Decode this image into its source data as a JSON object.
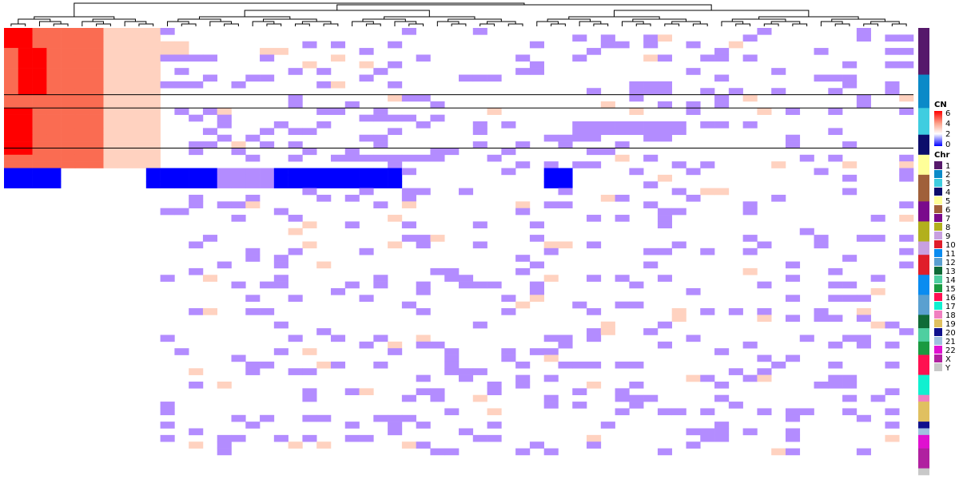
{
  "chart_data": {
    "type": "heatmap",
    "cn_legend": {
      "title": "CN",
      "ticks": [
        "6",
        "4",
        "2",
        "0"
      ],
      "colors": {
        "0": "#0000ff",
        "1": "#b38cff",
        "2": "#ffffff",
        "3": "#ffd2c0",
        "4": "#fca28a",
        "5": "#fa6c52",
        "6": "#ff0000"
      }
    },
    "chr_legend": {
      "title": "Chr",
      "entries": [
        {
          "label": "1",
          "color": "#56196b"
        },
        {
          "label": "2",
          "color": "#0b8ac8"
        },
        {
          "label": "3",
          "color": "#3fcde0"
        },
        {
          "label": "4",
          "color": "#0c0d6b"
        },
        {
          "label": "5",
          "color": "#ffff99"
        },
        {
          "label": "6",
          "color": "#a0603a"
        },
        {
          "label": "7",
          "color": "#7a0a8c"
        },
        {
          "label": "8",
          "color": "#b2b01d"
        },
        {
          "label": "9",
          "color": "#c8a0e0"
        },
        {
          "label": "10",
          "color": "#e01e2a"
        },
        {
          "label": "11",
          "color": "#0a8cf0"
        },
        {
          "label": "12",
          "color": "#5aa0d0"
        },
        {
          "label": "13",
          "color": "#0f6b37"
        },
        {
          "label": "14",
          "color": "#4ecfa0"
        },
        {
          "label": "15",
          "color": "#1a9a40"
        },
        {
          "label": "16",
          "color": "#ff1050"
        },
        {
          "label": "17",
          "color": "#10f0d0"
        },
        {
          "label": "18",
          "color": "#f080c0"
        },
        {
          "label": "19",
          "color": "#e0c060"
        },
        {
          "label": "20",
          "color": "#10108c"
        },
        {
          "label": "21",
          "color": "#a0c0e0"
        },
        {
          "label": "22",
          "color": "#e010d0"
        },
        {
          "label": "X",
          "color": "#b020a0"
        },
        {
          "label": "Y",
          "color": "#c8c8c8"
        }
      ]
    },
    "chr_bands": [
      {
        "chr": "1",
        "rows": 7
      },
      {
        "chr": "2",
        "rows": 5
      },
      {
        "chr": "3",
        "rows": 4
      },
      {
        "chr": "4",
        "rows": 3
      },
      {
        "chr": "5",
        "rows": 3
      },
      {
        "chr": "6",
        "rows": 4
      },
      {
        "chr": "7",
        "rows": 3
      },
      {
        "chr": "8",
        "rows": 3
      },
      {
        "chr": "9",
        "rows": 2
      },
      {
        "chr": "10",
        "rows": 3
      },
      {
        "chr": "11",
        "rows": 3
      },
      {
        "chr": "12",
        "rows": 3
      },
      {
        "chr": "13",
        "rows": 2
      },
      {
        "chr": "14",
        "rows": 2
      },
      {
        "chr": "15",
        "rows": 2
      },
      {
        "chr": "16",
        "rows": 3
      },
      {
        "chr": "17",
        "rows": 3
      },
      {
        "chr": "18",
        "rows": 1
      },
      {
        "chr": "19",
        "rows": 3
      },
      {
        "chr": "20",
        "rows": 1
      },
      {
        "chr": "21",
        "rows": 1
      },
      {
        "chr": "22",
        "rows": 2
      },
      {
        "chr": "X",
        "rows": 3
      },
      {
        "chr": "Y",
        "rows": 1
      }
    ],
    "cn_matrix_regions": [
      {
        "rows": [
          0,
          21
        ],
        "cols": [
          0,
          7
        ],
        "cn": 5
      },
      {
        "rows": [
          0,
          21
        ],
        "cols": [
          7,
          11
        ],
        "cn": 3
      },
      {
        "rows": [
          0,
          3
        ],
        "cols": [
          0,
          2
        ],
        "cn": 6
      },
      {
        "rows": [
          3,
          10
        ],
        "cols": [
          1,
          3
        ],
        "cn": 6
      },
      {
        "rows": [
          12,
          19
        ],
        "cols": [
          0,
          2
        ],
        "cn": 6
      },
      {
        "rows": [
          21,
          24
        ],
        "cols": [
          0,
          4
        ],
        "cn": 0
      },
      {
        "rows": [
          21,
          24
        ],
        "cols": [
          10,
          15
        ],
        "cn": 0
      },
      {
        "rows": [
          21,
          24
        ],
        "cols": [
          15,
          19
        ],
        "cn": 1
      },
      {
        "rows": [
          21,
          24
        ],
        "cols": [
          19,
          25
        ],
        "cn": 0
      },
      {
        "rows": [
          21,
          24
        ],
        "cols": [
          25,
          28
        ],
        "cn": 0
      },
      {
        "rows": [
          21,
          24
        ],
        "cols": [
          38,
          40
        ],
        "cn": 0
      },
      {
        "rows": [
          2,
          4
        ],
        "cols": [
          10,
          13
        ],
        "cn": 3
      },
      {
        "rows": [
          8,
          10
        ],
        "cols": [
          44,
          47
        ],
        "cn": 1
      },
      {
        "rows": [
          14,
          16
        ],
        "cols": [
          40,
          48
        ],
        "cn": 1
      },
      {
        "rows": [
          19,
          20
        ],
        "cols": [
          23,
          30
        ],
        "cn": 1
      }
    ],
    "separator_rows": [
      10,
      12,
      18
    ]
  }
}
